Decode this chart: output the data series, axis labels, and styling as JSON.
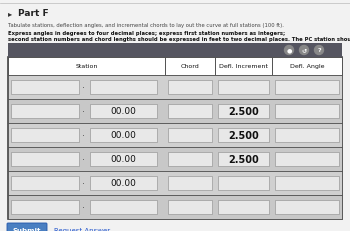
{
  "title": "Part F",
  "instruction_line1": "Tabulate stations, deflection angles, and incremental chords to lay out the curve at full stations (100 ft).",
  "instruction_line2": "Express angles in degrees to four decimal places; express first station numbers as integers; second station numbers and chord lengths should be expressed in feet to two decimal places. The PC station should be placed at the bottom of the table.",
  "col_headers": [
    "Station",
    "Chord",
    "Defl. Increment",
    "Defl. Angle"
  ],
  "num_rows": 6,
  "defl_increment_rows": [
    1,
    2,
    3
  ],
  "defl_increment_value": "2.500",
  "plus_00_rows": [
    1,
    2,
    3,
    4
  ],
  "plus_00_value": "00.00",
  "header_bar_color": "#555560",
  "table_border_color": "#444444",
  "row_bg_even": "#d0d0d0",
  "row_bg_odd": "#c8c8c8",
  "input_box_bg": "#e8e8e8",
  "input_box_border": "#999999",
  "white_bg": "#ffffff",
  "button_submit_color": "#4a7fc1",
  "button_submit_text": "Submit",
  "button_request_text": "Request Answer",
  "page_bg": "#f2f2f2",
  "icon_bg": "#888888"
}
